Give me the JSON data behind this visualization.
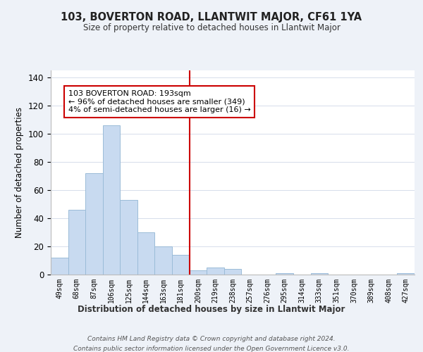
{
  "title": "103, BOVERTON ROAD, LLANTWIT MAJOR, CF61 1YA",
  "subtitle": "Size of property relative to detached houses in Llantwit Major",
  "xlabel": "Distribution of detached houses by size in Llantwit Major",
  "ylabel": "Number of detached properties",
  "bar_labels": [
    "49sqm",
    "68sqm",
    "87sqm",
    "106sqm",
    "125sqm",
    "144sqm",
    "163sqm",
    "181sqm",
    "200sqm",
    "219sqm",
    "238sqm",
    "257sqm",
    "276sqm",
    "295sqm",
    "314sqm",
    "333sqm",
    "351sqm",
    "370sqm",
    "389sqm",
    "408sqm",
    "427sqm"
  ],
  "bar_values": [
    12,
    46,
    72,
    106,
    53,
    30,
    20,
    14,
    3,
    5,
    4,
    0,
    0,
    1,
    0,
    1,
    0,
    0,
    0,
    0,
    1
  ],
  "bar_color": "#c8daf0",
  "bar_edge_color": "#9bbcd8",
  "vline_x_index": 7.5,
  "vline_color": "#cc0000",
  "annotation_title": "103 BOVERTON ROAD: 193sqm",
  "annotation_line1": "← 96% of detached houses are smaller (349)",
  "annotation_line2": "4% of semi-detached houses are larger (16) →",
  "annotation_box_color": "#ffffff",
  "annotation_box_edge": "#cc0000",
  "ylim": [
    0,
    145
  ],
  "yticks": [
    0,
    20,
    40,
    60,
    80,
    100,
    120,
    140
  ],
  "footnote1": "Contains HM Land Registry data © Crown copyright and database right 2024.",
  "footnote2": "Contains public sector information licensed under the Open Government Licence v3.0.",
  "bg_color": "#eef2f8",
  "plot_bg_color": "#ffffff",
  "grid_color": "#d0d8e8"
}
